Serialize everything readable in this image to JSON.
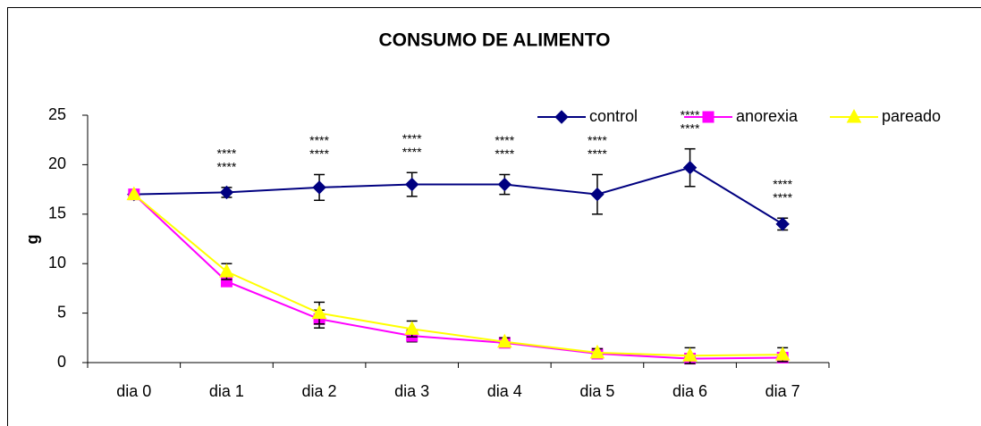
{
  "chart_data": {
    "type": "line",
    "title": "CONSUMO DE ALIMENTO",
    "y_label": "g",
    "categories": [
      "dia 0",
      "dia 1",
      "dia 2",
      "dia 3",
      "dia 4",
      "dia 5",
      "dia 6",
      "dia 7"
    ],
    "series": [
      {
        "name": "control",
        "color": "#000080",
        "marker": "diamond",
        "values": [
          17,
          17.2,
          17.7,
          18,
          18,
          17,
          19.7,
          14
        ],
        "errors": [
          0,
          0.5,
          1.3,
          1.2,
          1.0,
          2.0,
          1.9,
          0.6
        ]
      },
      {
        "name": "anorexia",
        "color": "#ff00ff",
        "marker": "square",
        "values": [
          17,
          8.2,
          4.4,
          2.7,
          2.0,
          0.9,
          0.4,
          0.5
        ],
        "errors": [
          0,
          0.4,
          0.9,
          0.6,
          0.4,
          0.3,
          0.2,
          0.2
        ]
      },
      {
        "name": "pareado",
        "color": "#ffff00",
        "marker": "triangle",
        "values": [
          17,
          9.2,
          5.0,
          3.4,
          2.1,
          1.0,
          0.7,
          0.8
        ],
        "errors": [
          0,
          0.8,
          1.1,
          0.8,
          0.4,
          0.4,
          0.8,
          0.7
        ]
      }
    ],
    "annotations": [
      null,
      [
        "****",
        "****"
      ],
      [
        "****",
        "****"
      ],
      [
        "****",
        "****"
      ],
      [
        "****",
        "****"
      ],
      [
        "****",
        "****"
      ],
      [
        "****",
        "****"
      ],
      [
        "****",
        "****"
      ]
    ],
    "ylim": [
      0,
      25
    ],
    "yticks": [
      0,
      5,
      10,
      15,
      20,
      25
    ],
    "grid": false,
    "legend": "top-right"
  }
}
